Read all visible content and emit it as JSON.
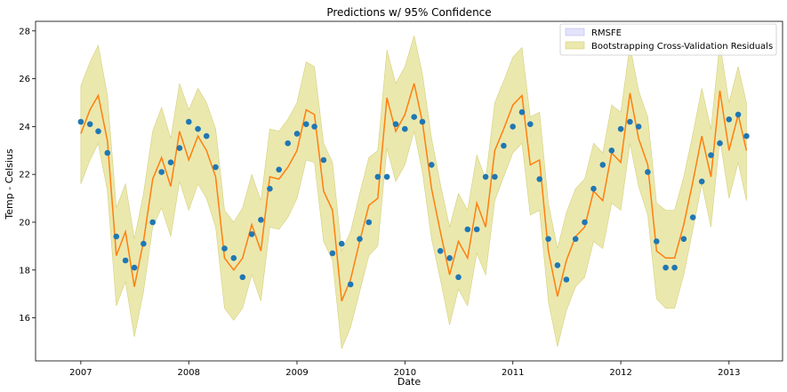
{
  "chart_data": {
    "type": "line",
    "title": "Predictions w/ 95% Confidence",
    "xlabel": "Date",
    "ylabel": "Temp - Celsius",
    "xlim": [
      "2006-08-01",
      "2013-07-01"
    ],
    "ylim": [
      14.2,
      28.4
    ],
    "x_ticks": [
      "2007",
      "2008",
      "2009",
      "2010",
      "2011",
      "2012",
      "2013"
    ],
    "y_ticks": [
      16,
      18,
      20,
      22,
      24,
      26,
      28
    ],
    "grid": false,
    "legend_position": "top-right",
    "legend": [
      {
        "label": "RMSFE",
        "color": "#e3e3fb"
      },
      {
        "label": "Bootstrapping Cross-Validation Residuals",
        "color": "#ebe8ae"
      }
    ],
    "colors": {
      "observed": "#1f77b4",
      "prediction": "#ff7f0e",
      "band": "#ebe8ae",
      "band_edge": "#d4d07a"
    },
    "x": [
      "2007-01",
      "2007-02",
      "2007-03",
      "2007-04",
      "2007-05",
      "2007-06",
      "2007-07",
      "2007-08",
      "2007-09",
      "2007-10",
      "2007-11",
      "2007-12",
      "2008-01",
      "2008-02",
      "2008-03",
      "2008-04",
      "2008-05",
      "2008-06",
      "2008-07",
      "2008-08",
      "2008-09",
      "2008-10",
      "2008-11",
      "2008-12",
      "2009-01",
      "2009-02",
      "2009-03",
      "2009-04",
      "2009-05",
      "2009-06",
      "2009-07",
      "2009-08",
      "2009-09",
      "2009-10",
      "2009-11",
      "2009-12",
      "2010-01",
      "2010-02",
      "2010-03",
      "2010-04",
      "2010-05",
      "2010-06",
      "2010-07",
      "2010-08",
      "2010-09",
      "2010-10",
      "2010-11",
      "2010-12",
      "2011-01",
      "2011-02",
      "2011-03",
      "2011-04",
      "2011-05",
      "2011-06",
      "2011-07",
      "2011-08",
      "2011-09",
      "2011-10",
      "2011-11",
      "2011-12",
      "2012-01",
      "2012-02",
      "2012-03",
      "2012-04",
      "2012-05",
      "2012-06",
      "2012-07",
      "2012-08",
      "2012-09",
      "2012-10",
      "2012-11",
      "2012-12",
      "2013-01",
      "2013-02",
      "2013-03"
    ],
    "series": [
      {
        "role": "observed",
        "values": [
          24.2,
          24.1,
          23.8,
          22.9,
          19.4,
          18.4,
          18.1,
          19.1,
          20.0,
          22.1,
          22.5,
          23.1,
          24.2,
          23.9,
          23.6,
          22.3,
          18.9,
          18.5,
          17.7,
          19.5,
          20.1,
          21.4,
          22.2,
          23.3,
          23.7,
          24.1,
          24.0,
          22.6,
          18.7,
          19.1,
          17.4,
          19.3,
          20.0,
          21.9,
          21.9,
          24.1,
          23.9,
          24.4,
          24.2,
          22.4,
          18.8,
          18.5,
          17.7,
          19.7,
          19.7,
          21.9,
          21.9,
          23.2,
          24.0,
          24.6,
          24.1,
          21.8,
          19.3,
          18.2,
          17.6,
          19.3,
          20.0,
          21.4,
          22.4,
          23.0,
          23.9,
          24.2,
          24.0,
          22.1,
          19.2,
          18.1,
          18.1,
          19.3,
          20.2,
          21.7,
          22.8,
          23.3,
          24.3,
          24.5,
          23.6
        ]
      },
      {
        "role": "prediction",
        "values": [
          23.7,
          24.7,
          25.3,
          23.4,
          18.6,
          19.6,
          17.3,
          19.2,
          21.8,
          22.7,
          21.5,
          23.8,
          22.6,
          23.6,
          23.0,
          21.9,
          18.5,
          18.0,
          18.5,
          19.9,
          18.8,
          21.9,
          21.8,
          22.3,
          23.0,
          24.7,
          24.5,
          21.3,
          20.5,
          16.7,
          17.6,
          19.2,
          20.7,
          21.0,
          25.2,
          23.8,
          24.5,
          25.8,
          24.2,
          21.4,
          19.6,
          17.8,
          19.2,
          18.5,
          20.8,
          19.8,
          23.0,
          23.9,
          24.9,
          25.3,
          22.4,
          22.6,
          18.8,
          16.9,
          18.4,
          19.4,
          19.8,
          21.3,
          20.9,
          22.9,
          22.5,
          25.4,
          23.5,
          22.4,
          18.8,
          18.5,
          18.5,
          19.9,
          21.7,
          23.6,
          21.9,
          25.5,
          23.0,
          24.5,
          23.0
        ]
      },
      {
        "role": "band_upper",
        "values": [
          25.7,
          26.7,
          27.4,
          25.3,
          20.6,
          21.6,
          19.3,
          21.2,
          23.8,
          24.8,
          23.5,
          25.8,
          24.7,
          25.6,
          25.0,
          23.9,
          20.5,
          20.0,
          20.6,
          22.0,
          20.9,
          23.9,
          23.8,
          24.3,
          25.0,
          26.7,
          26.5,
          23.3,
          22.5,
          18.8,
          19.6,
          21.2,
          22.7,
          23.0,
          27.2,
          25.8,
          26.5,
          27.8,
          26.2,
          23.5,
          21.6,
          19.8,
          21.2,
          20.5,
          22.8,
          21.8,
          25.0,
          25.9,
          26.9,
          27.3,
          24.4,
          24.6,
          20.8,
          18.9,
          20.4,
          21.4,
          21.8,
          23.3,
          22.9,
          24.9,
          24.6,
          27.4,
          25.5,
          24.4,
          20.8,
          20.5,
          20.5,
          21.9,
          23.7,
          25.6,
          23.9,
          27.5,
          25.0,
          26.5,
          25.0
        ]
      },
      {
        "role": "band_lower",
        "values": [
          21.6,
          22.6,
          23.3,
          21.3,
          16.5,
          17.5,
          15.2,
          17.1,
          19.8,
          20.6,
          19.4,
          21.7,
          20.5,
          21.6,
          21.0,
          19.8,
          16.4,
          15.9,
          16.4,
          17.8,
          16.7,
          19.8,
          19.7,
          20.2,
          21.0,
          22.6,
          22.5,
          19.2,
          18.4,
          14.7,
          15.6,
          17.1,
          18.6,
          19.0,
          23.1,
          21.7,
          22.4,
          23.8,
          22.1,
          19.3,
          17.6,
          15.7,
          17.2,
          16.5,
          18.7,
          17.8,
          20.9,
          21.9,
          22.9,
          23.3,
          20.3,
          20.5,
          16.7,
          14.8,
          16.3,
          17.3,
          17.7,
          19.2,
          18.9,
          20.8,
          20.5,
          23.3,
          21.5,
          20.3,
          16.8,
          16.4,
          16.4,
          17.8,
          19.7,
          21.6,
          19.8,
          23.5,
          21.0,
          22.5,
          20.9
        ]
      }
    ]
  }
}
